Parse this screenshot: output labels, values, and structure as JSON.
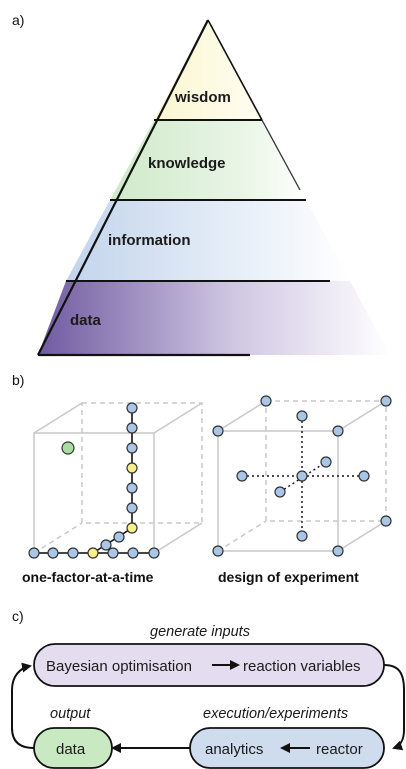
{
  "panels": {
    "a": "a)",
    "b": "b)",
    "c": "c)"
  },
  "pyramid": {
    "levels": [
      "wisdom",
      "knowledge",
      "information",
      "data"
    ]
  },
  "cubes": {
    "left_caption": "one-factor-at-a-time",
    "right_caption": "design of experiment"
  },
  "workflow": {
    "top_label": "generate inputs",
    "left_label": "output",
    "right_label": "execution/experiments",
    "box_top_left": "Bayesian optimisation",
    "box_top_right": "reaction variables",
    "box_bottom_left": "analytics",
    "box_bottom_right": "reactor",
    "box_output": "data"
  },
  "colors": {
    "data": "#7b6aa8",
    "information": "#c9d8ec",
    "knowledge": "#d4ecd0",
    "wisdom": "#fbf7d4",
    "node_blue": "#a9c6e6",
    "node_yellow": "#f7f08a",
    "node_green": "#a8dca0",
    "box_purple": "#e4ddef",
    "box_blue": "#cfdcee",
    "box_green": "#c9e9c3"
  }
}
